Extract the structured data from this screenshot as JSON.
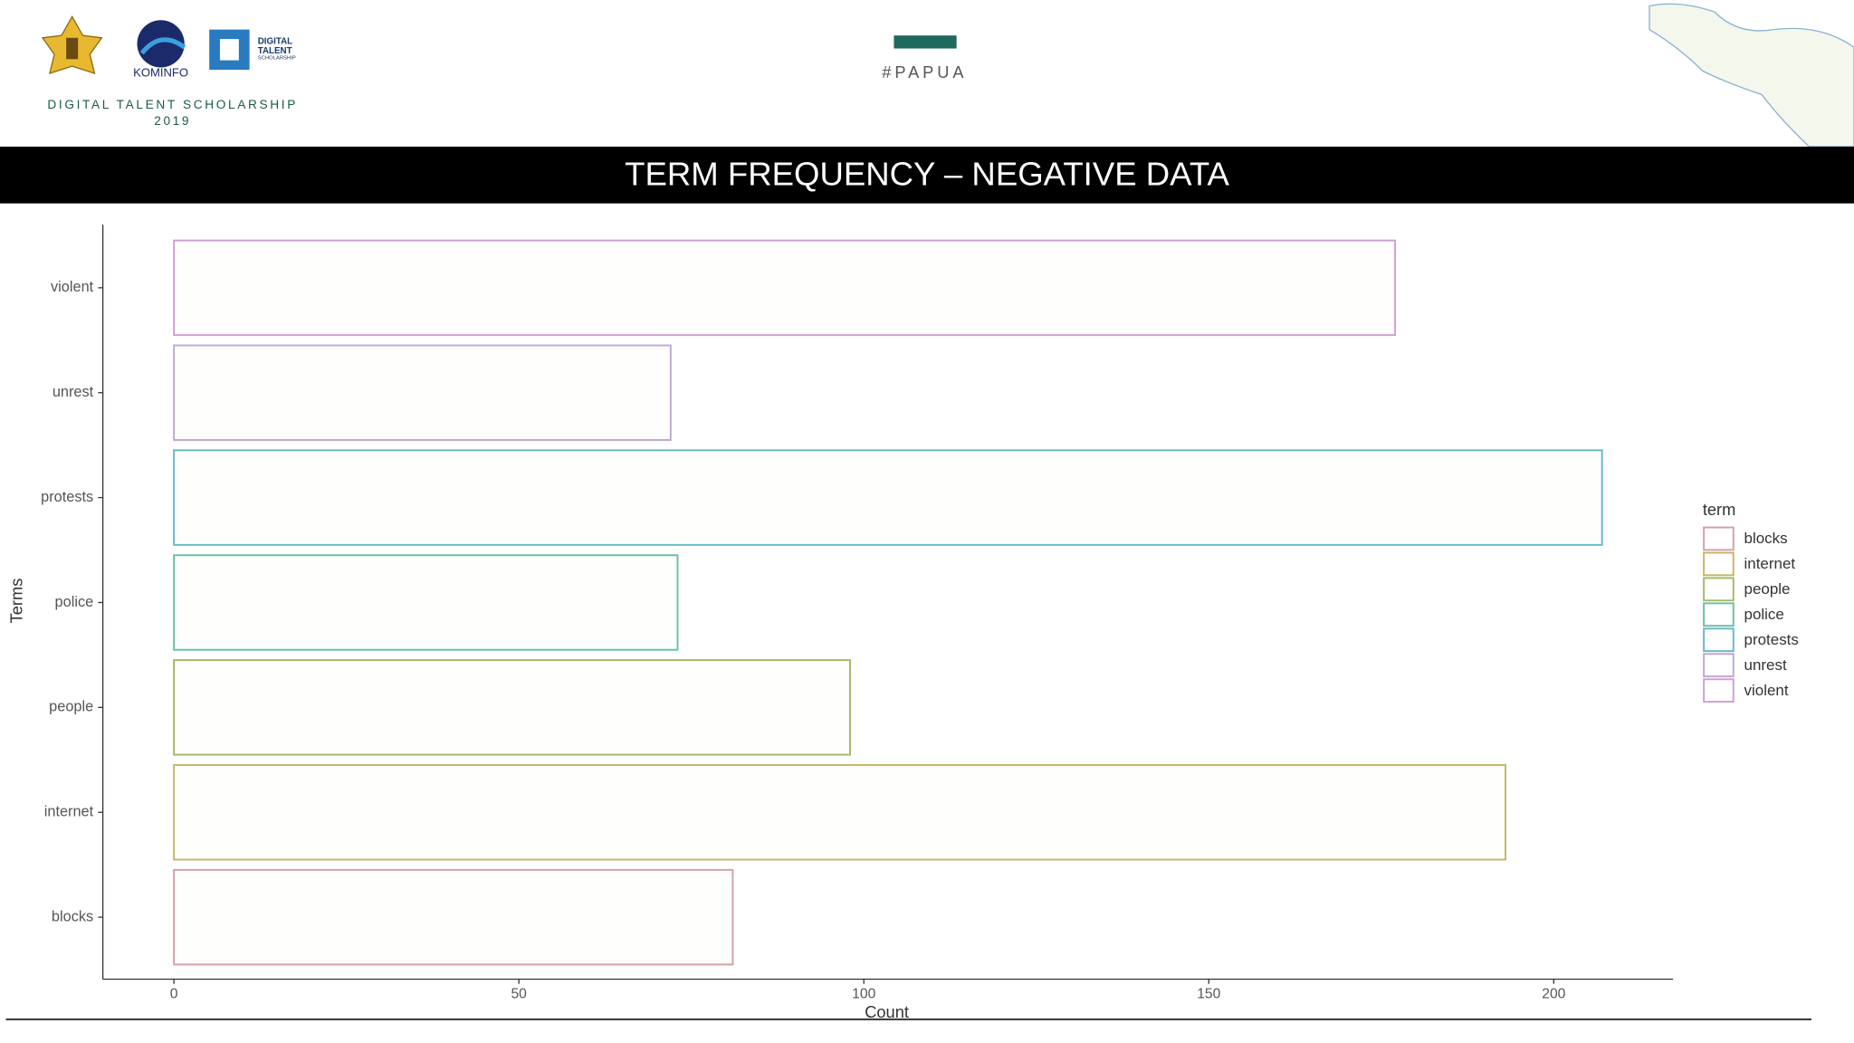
{
  "header": {
    "program": "DIGITAL TALENT SCHOLARSHIP",
    "year": "2019",
    "kominfo": "KOMINFO",
    "dts_logo": [
      "DIGITAL",
      "TALENT",
      "SCHOLARSHIP"
    ],
    "hashtag": "#PAPUA",
    "slide_title": "TERM FREQUENCY – NEGATIVE DATA"
  },
  "chart_data": {
    "type": "bar",
    "orientation": "horizontal",
    "categories": [
      "blocks",
      "internet",
      "people",
      "police",
      "protests",
      "unrest",
      "violent"
    ],
    "values": [
      81,
      193,
      98,
      73,
      207,
      72,
      177
    ],
    "colors": [
      "#d4a0a8",
      "#c8b468",
      "#a8b868",
      "#68c0a8",
      "#68b8c8",
      "#c0a8d0",
      "#d0a0d4"
    ],
    "xlabel": "Count",
    "ylabel": "Terms",
    "xlim": [
      -10.3,
      217.3
    ],
    "xticks": [
      0,
      50,
      100,
      150,
      200
    ],
    "legend_title": "term",
    "legend": "right",
    "grid": false
  }
}
